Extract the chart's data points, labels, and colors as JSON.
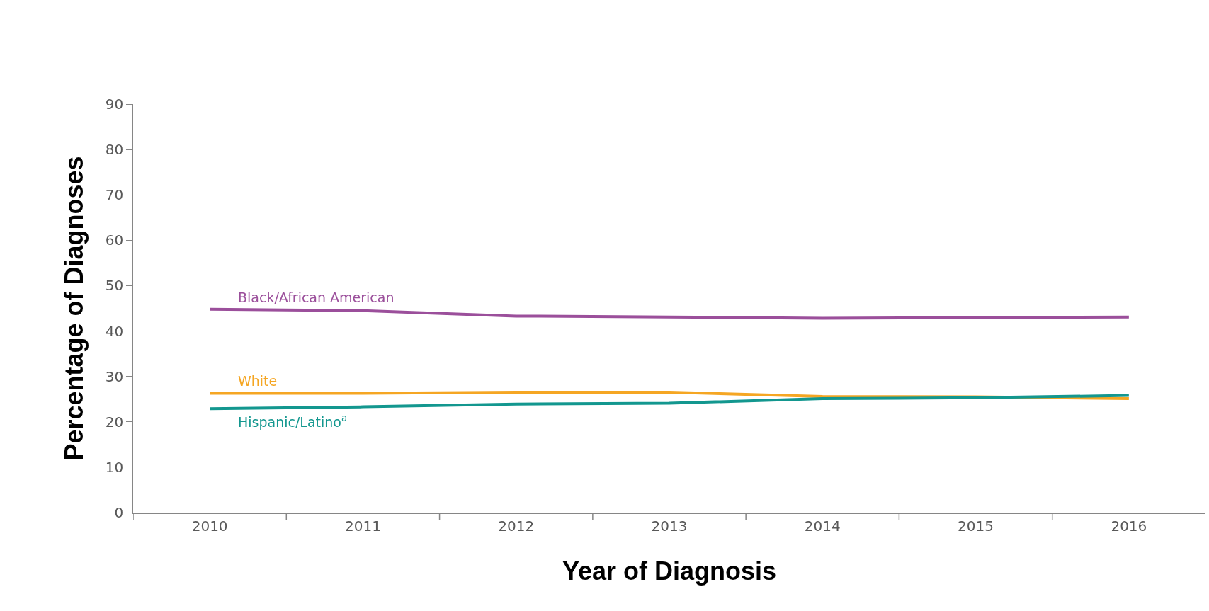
{
  "chart_data": {
    "type": "line",
    "xlabel": "Year of Diagnosis",
    "ylabel": "Percentage of Diagnoses",
    "categories": [
      "2010",
      "2011",
      "2012",
      "2013",
      "2014",
      "2015",
      "2016"
    ],
    "series": [
      {
        "name": "Black/African American",
        "color": "#9b4f9b",
        "values": [
          44.8,
          44.5,
          43.3,
          43.1,
          42.8,
          43.0,
          43.1
        ]
      },
      {
        "name": "White",
        "color": "#f5a623",
        "values": [
          26.3,
          26.3,
          26.5,
          26.5,
          25.6,
          25.5,
          25.1
        ]
      },
      {
        "name": "Hispanic/Latino$^{a}$",
        "color": "#13978f",
        "values": [
          22.9,
          23.3,
          23.9,
          24.1,
          25.1,
          25.3,
          25.8
        ]
      }
    ],
    "ylim": [
      0,
      90
    ],
    "yticks": [
      0,
      10,
      20,
      30,
      40,
      50,
      60,
      70,
      80,
      90
    ],
    "legend": false,
    "marker": "none",
    "line_style": "solid"
  }
}
